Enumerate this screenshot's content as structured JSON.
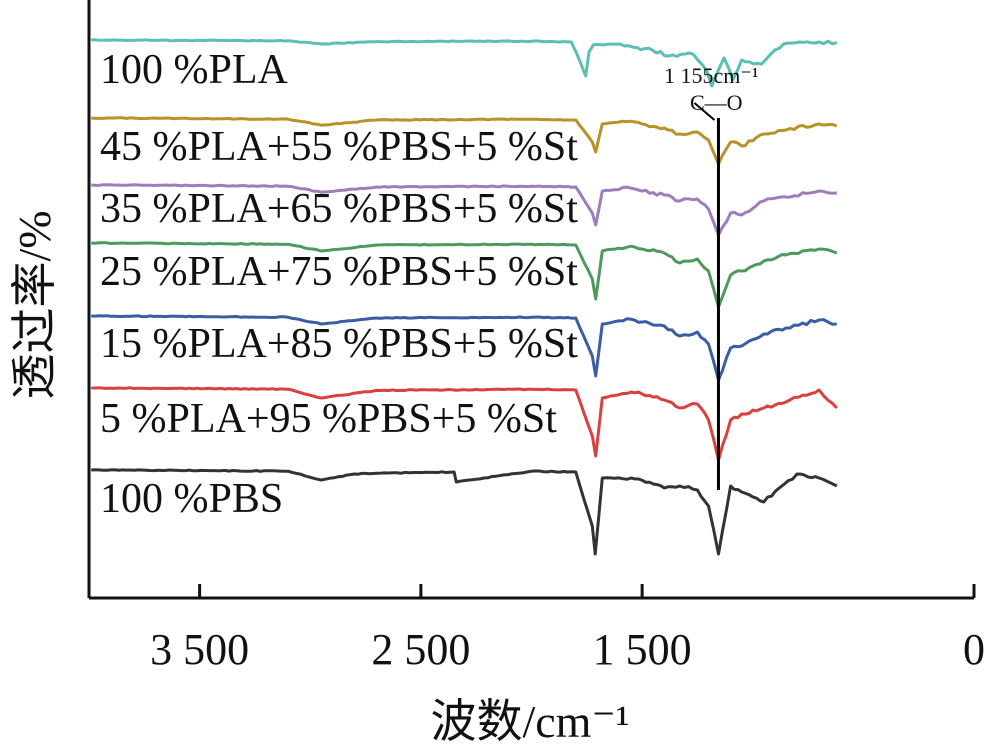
{
  "chart_data": {
    "type": "line",
    "title": "",
    "xlabel": "波数/cm⁻¹",
    "ylabel": "透过率/%",
    "x_reversed": true,
    "xlim": [
      4000,
      0
    ],
    "x_ticks": [
      3500,
      2500,
      1500,
      0
    ],
    "x_tick_labels": [
      "3 500",
      "2 500",
      "1 500",
      "0"
    ],
    "y_ticks_shown": false,
    "grid": false,
    "legend": "inline-labels",
    "annotation": {
      "line1": "1 155cm⁻¹",
      "line2": "C—O",
      "x": 1155
    },
    "series": [
      {
        "name": "100 %PLA",
        "color": "#5bbfb5",
        "x": [
          3990,
          3600,
          3100,
          2950,
          2700,
          2000,
          1820,
          1795,
          1755,
          1740,
          1720,
          1600,
          1540,
          1454,
          1380,
          1270,
          1210,
          1185,
          1130,
          1090,
          1050,
          960,
          900,
          860,
          700,
          620
        ],
        "y": [
          0,
          0.1,
          0.2,
          1.0,
          0.4,
          0.3,
          0.5,
          3.5,
          9.0,
          3.0,
          1.2,
          1.0,
          1.8,
          2.5,
          4.0,
          3.5,
          7.5,
          11.5,
          4.5,
          10.0,
          5.0,
          6.0,
          2.5,
          1.0,
          0.5,
          0.6
        ]
      },
      {
        "name": "45 %PLA+55 %PBS+5 %St",
        "color": "#b8922a",
        "x": [
          3990,
          3600,
          3100,
          2950,
          2700,
          2000,
          1800,
          1725,
          1710,
          1680,
          1550,
          1500,
          1400,
          1330,
          1250,
          1200,
          1155,
          1100,
          1050,
          950,
          850,
          700,
          620
        ],
        "y": [
          0,
          0.1,
          0.3,
          1.8,
          0.5,
          0.3,
          0.5,
          6.0,
          8.5,
          1.5,
          0.8,
          1.5,
          2.5,
          4.0,
          3.5,
          5.5,
          11.5,
          6.0,
          7.0,
          4.0,
          3.0,
          1.5,
          2.0
        ]
      },
      {
        "name": "35 %PLA+65 %PBS+5 %St",
        "color": "#9f7db8",
        "x": [
          3990,
          3600,
          3100,
          2950,
          2700,
          2000,
          1800,
          1725,
          1710,
          1680,
          1550,
          1500,
          1400,
          1330,
          1250,
          1200,
          1155,
          1100,
          1050,
          950,
          850,
          700,
          620
        ],
        "y": [
          0,
          0.1,
          0.3,
          1.8,
          0.5,
          0.3,
          0.5,
          7.0,
          10.0,
          1.5,
          0.8,
          1.5,
          2.5,
          4.0,
          3.5,
          6.0,
          12.5,
          7.0,
          7.5,
          4.0,
          3.0,
          1.5,
          2.0
        ]
      },
      {
        "name": "25 %PLA+75 %PBS+5 %St",
        "color": "#4d9a5c",
        "x": [
          3990,
          3600,
          3100,
          2950,
          2700,
          2000,
          1800,
          1725,
          1710,
          1680,
          1550,
          1500,
          1400,
          1330,
          1250,
          1200,
          1155,
          1100,
          1050,
          950,
          850,
          700,
          620
        ],
        "y": [
          0,
          0.1,
          0.3,
          2.0,
          0.5,
          0.3,
          0.5,
          9.0,
          14.0,
          2.0,
          0.8,
          1.5,
          2.5,
          5.0,
          4.0,
          7.0,
          16.0,
          8.0,
          7.0,
          4.5,
          3.0,
          1.5,
          2.5
        ]
      },
      {
        "name": "15 %PLA+85 %PBS+5 %St",
        "color": "#3a5ea6",
        "x": [
          3990,
          3600,
          3100,
          2950,
          2700,
          2000,
          1800,
          1725,
          1710,
          1680,
          1550,
          1500,
          1400,
          1330,
          1250,
          1200,
          1155,
          1100,
          1050,
          950,
          850,
          700,
          620
        ],
        "y": [
          0,
          0.1,
          0.3,
          2.0,
          0.5,
          0.3,
          0.5,
          10.0,
          15.0,
          2.0,
          0.8,
          1.5,
          2.5,
          5.0,
          4.0,
          7.0,
          16.0,
          8.0,
          7.5,
          4.5,
          3.0,
          1.0,
          2.0
        ]
      },
      {
        "name": "5 %PLA+95 %PBS+5 %St",
        "color": "#d9403f",
        "x": [
          3990,
          3600,
          3100,
          2950,
          2700,
          2000,
          1800,
          1725,
          1710,
          1680,
          1550,
          1500,
          1400,
          1330,
          1250,
          1200,
          1155,
          1100,
          1050,
          950,
          850,
          700,
          620
        ],
        "y": [
          0,
          0.1,
          0.3,
          2.5,
          0.6,
          0.3,
          0.5,
          12.0,
          17.0,
          2.5,
          1.0,
          1.5,
          3.0,
          5.0,
          4.0,
          8.0,
          18.0,
          8.0,
          6.5,
          5.0,
          3.5,
          0.5,
          5.0
        ]
      },
      {
        "name": "100 %PBS",
        "color": "#333333",
        "x": [
          3990,
          3600,
          3100,
          2950,
          2800,
          2700,
          2350,
          2340,
          2000,
          1800,
          1725,
          1712,
          1680,
          1550,
          1450,
          1400,
          1330,
          1250,
          1200,
          1155,
          1100,
          1050,
          950,
          880,
          800,
          700,
          620
        ],
        "y": [
          0,
          0.1,
          0.3,
          2.5,
          1.0,
          0.8,
          0.5,
          3.0,
          0.3,
          0.5,
          14.0,
          21.0,
          2.0,
          2.0,
          3.5,
          4.5,
          4.0,
          5.0,
          9.0,
          21.0,
          4.0,
          5.5,
          8.0,
          4.5,
          1.0,
          2.0,
          4.0
        ]
      }
    ]
  }
}
